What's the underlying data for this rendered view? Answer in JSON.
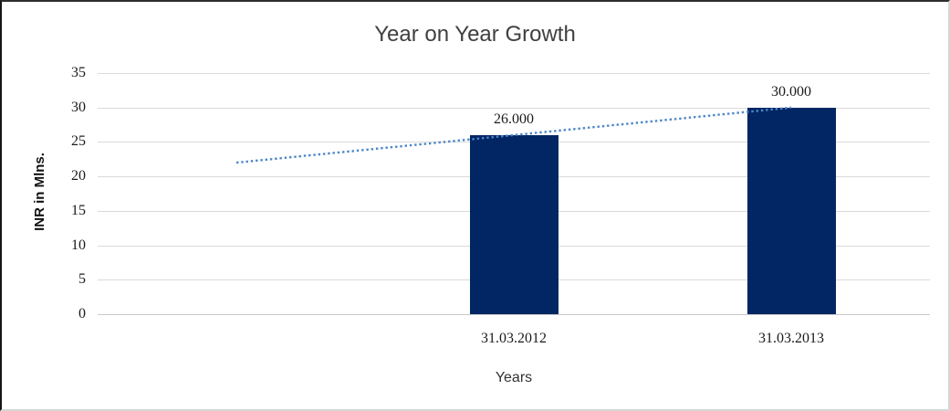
{
  "chart_data": {
    "type": "bar",
    "title": "Year on Year Growth",
    "categories": [
      "31.03.2012",
      "31.03.2013"
    ],
    "values": [
      26,
      30
    ],
    "data_labels": [
      "26.000",
      "30.000"
    ],
    "xlabel": "Years",
    "ylabel": "INR in Mlns.",
    "ylim": [
      0,
      35
    ],
    "yticks": [
      0,
      5,
      10,
      15,
      20,
      25,
      30,
      35
    ],
    "grid": true,
    "legend": false,
    "trendline": {
      "type": "linear",
      "style": "dotted",
      "start_value": 22,
      "end_value": 30
    },
    "colors": {
      "bar": "#022663",
      "trendline": "#4d87c8",
      "gridline": "#dadada",
      "title_text": "#404040",
      "label_text": "#1a1a1a"
    }
  }
}
